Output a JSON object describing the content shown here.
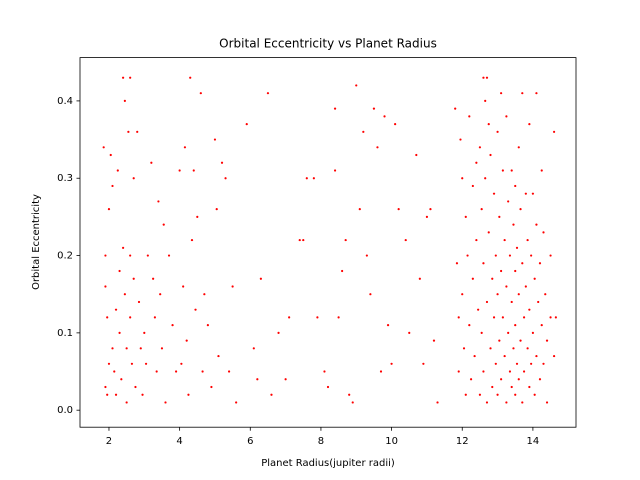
{
  "chart_data": {
    "type": "scatter",
    "title": "Orbital Eccentricity vs Planet Radius",
    "x_label": "Planet Radius(jupiter radii)",
    "y_label": "Orbital Eccentricity",
    "color": "red",
    "xlim": [
      1.18,
      15.22
    ],
    "ylim": [
      -0.022,
      0.456
    ],
    "xticks": [
      2,
      4,
      6,
      8,
      10,
      12,
      14
    ],
    "yticks": [
      {
        "value": 0,
        "label": "0.0"
      },
      0.1,
      0.2,
      0.3,
      0.4
    ],
    "x": [
      1.85,
      1.9,
      1.9,
      1.95,
      1.9,
      1.95,
      2.0,
      2.05,
      2.1,
      2.0,
      2.1,
      2.15,
      2.2,
      2.2,
      2.25,
      2.3,
      2.3,
      2.35,
      2.4,
      2.45,
      2.4,
      2.45,
      2.5,
      2.5,
      2.55,
      2.6,
      2.6,
      2.6,
      2.65,
      2.7,
      2.7,
      2.75,
      2.8,
      2.85,
      2.9,
      2.95,
      3.0,
      3.05,
      3.1,
      3.2,
      3.25,
      3.3,
      3.35,
      3.4,
      3.45,
      3.5,
      3.55,
      3.6,
      3.7,
      3.8,
      3.9,
      4.0,
      4.05,
      4.1,
      4.15,
      4.2,
      4.25,
      4.3,
      4.35,
      4.4,
      4.45,
      4.5,
      4.6,
      4.65,
      4.7,
      4.8,
      4.9,
      5.0,
      5.05,
      5.1,
      5.2,
      5.3,
      5.4,
      5.5,
      5.6,
      5.9,
      6.1,
      6.2,
      6.3,
      6.5,
      6.6,
      6.8,
      7.0,
      7.1,
      7.4,
      7.5,
      7.6,
      7.8,
      7.9,
      8.1,
      8.2,
      8.4,
      8.4,
      8.5,
      8.6,
      8.7,
      8.8,
      8.9,
      9.0,
      9.1,
      9.2,
      9.3,
      9.4,
      9.5,
      9.6,
      9.7,
      9.8,
      9.9,
      10.0,
      10.1,
      10.2,
      10.4,
      10.5,
      10.7,
      10.8,
      10.9,
      11.0,
      11.1,
      11.2,
      11.3,
      11.8,
      11.85,
      11.9,
      11.9,
      11.95,
      12.0,
      12.0,
      12.05,
      12.1,
      12.1,
      12.15,
      12.2,
      12.2,
      12.25,
      12.3,
      12.3,
      12.35,
      12.4,
      12.4,
      12.45,
      12.5,
      12.5,
      12.55,
      12.55,
      12.6,
      12.6,
      12.6,
      12.65,
      12.65,
      12.7,
      12.7,
      12.7,
      12.75,
      12.75,
      12.8,
      12.8,
      12.85,
      12.85,
      12.9,
      12.9,
      12.95,
      12.95,
      13.0,
      13.0,
      13.0,
      13.05,
      13.05,
      13.1,
      13.1,
      13.1,
      13.15,
      13.15,
      13.2,
      13.2,
      13.25,
      13.25,
      13.25,
      13.3,
      13.3,
      13.35,
      13.35,
      13.4,
      13.4,
      13.4,
      13.45,
      13.45,
      13.5,
      13.5,
      13.5,
      13.5,
      13.55,
      13.55,
      13.6,
      13.6,
      13.6,
      13.65,
      13.65,
      13.7,
      13.7,
      13.7,
      13.75,
      13.75,
      13.8,
      13.8,
      13.85,
      13.85,
      13.9,
      13.9,
      13.9,
      13.95,
      13.95,
      14.0,
      14.0,
      14.05,
      14.05,
      14.1,
      14.1,
      14.1,
      14.15,
      14.2,
      14.2,
      14.25,
      14.25,
      14.3,
      14.3,
      14.35,
      14.4,
      14.4,
      14.5,
      14.5,
      14.6,
      14.6,
      14.65
    ],
    "values": [
      0.34,
      0.2,
      0.16,
      0.12,
      0.03,
      0.02,
      0.26,
      0.33,
      0.29,
      0.06,
      0.08,
      0.05,
      0.13,
      0.02,
      0.31,
      0.18,
      0.1,
      0.04,
      0.43,
      0.4,
      0.21,
      0.15,
      0.08,
      0.01,
      0.36,
      0.43,
      0.2,
      0.12,
      0.06,
      0.3,
      0.17,
      0.03,
      0.36,
      0.14,
      0.08,
      0.02,
      0.1,
      0.06,
      0.2,
      0.32,
      0.17,
      0.12,
      0.05,
      0.27,
      0.15,
      0.08,
      0.24,
      0.01,
      0.2,
      0.11,
      0.05,
      0.31,
      0.06,
      0.16,
      0.34,
      0.09,
      0.02,
      0.43,
      0.22,
      0.31,
      0.13,
      0.25,
      0.41,
      0.05,
      0.15,
      0.11,
      0.03,
      0.35,
      0.26,
      0.07,
      0.32,
      0.3,
      0.05,
      0.16,
      0.01,
      0.37,
      0.08,
      0.04,
      0.17,
      0.41,
      0.02,
      0.1,
      0.04,
      0.12,
      0.22,
      0.22,
      0.3,
      0.3,
      0.12,
      0.05,
      0.03,
      0.39,
      0.31,
      0.12,
      0.18,
      0.22,
      0.02,
      0.01,
      0.42,
      0.26,
      0.36,
      0.2,
      0.15,
      0.39,
      0.34,
      0.05,
      0.38,
      0.11,
      0.06,
      0.37,
      0.26,
      0.22,
      0.1,
      0.33,
      0.17,
      0.06,
      0.25,
      0.26,
      0.09,
      0.01,
      0.39,
      0.19,
      0.12,
      0.05,
      0.35,
      0.3,
      0.15,
      0.08,
      0.02,
      0.25,
      0.2,
      0.38,
      0.11,
      0.04,
      0.29,
      0.17,
      0.07,
      0.32,
      0.22,
      0.13,
      0.02,
      0.34,
      0.26,
      0.1,
      0.43,
      0.19,
      0.05,
      0.4,
      0.3,
      0.43,
      0.14,
      0.01,
      0.37,
      0.23,
      0.33,
      0.08,
      0.17,
      0.03,
      0.28,
      0.12,
      0.2,
      0.06,
      0.36,
      0.15,
      0.02,
      0.25,
      0.09,
      0.41,
      0.18,
      0.04,
      0.31,
      0.12,
      0.22,
      0.07,
      0.38,
      0.16,
      0.01,
      0.27,
      0.1,
      0.2,
      0.05,
      0.31,
      0.14,
      0.03,
      0.24,
      0.08,
      0.29,
      0.18,
      0.11,
      0.02,
      0.21,
      0.06,
      0.34,
      0.15,
      0.04,
      0.26,
      0.09,
      0.41,
      0.19,
      0.01,
      0.12,
      0.05,
      0.28,
      0.16,
      0.22,
      0.08,
      0.37,
      0.13,
      0.03,
      0.2,
      0.06,
      0.28,
      0.1,
      0.17,
      0.02,
      0.41,
      0.24,
      0.07,
      0.14,
      0.19,
      0.04,
      0.31,
      0.11,
      0.23,
      0.06,
      0.15,
      0.01,
      0.09,
      0.2,
      0.12,
      0.36,
      0.07,
      0.12
    ]
  }
}
